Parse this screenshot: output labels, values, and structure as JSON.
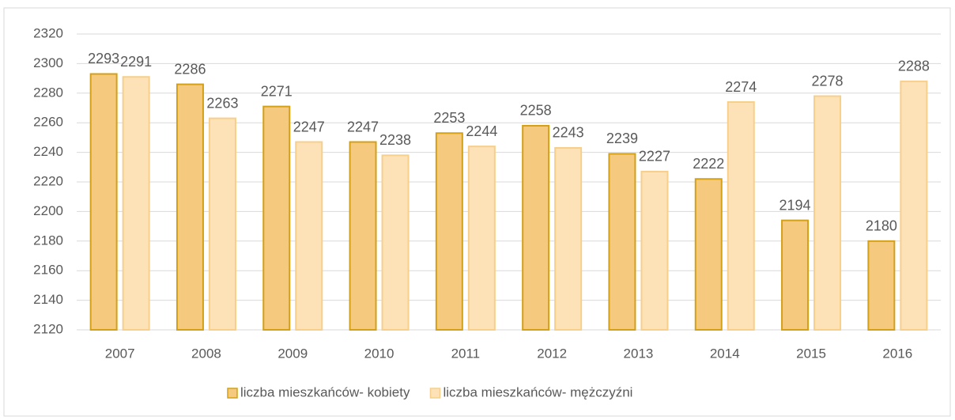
{
  "chart_data": {
    "type": "bar",
    "categories": [
      "2007",
      "2008",
      "2009",
      "2010",
      "2011",
      "2012",
      "2013",
      "2014",
      "2015",
      "2016"
    ],
    "series": [
      {
        "name": "liczba mieszkańców- kobiety",
        "color": "#f5c97e",
        "stroke": "#d4a017",
        "values": [
          2293,
          2286,
          2271,
          2247,
          2253,
          2258,
          2239,
          2222,
          2194,
          2180
        ]
      },
      {
        "name": "liczba mieszkańców- mężczyźni",
        "color": "#fde2b8",
        "stroke": "#f7cf8a",
        "values": [
          2291,
          2263,
          2247,
          2238,
          2244,
          2243,
          2227,
          2274,
          2278,
          2288
        ]
      }
    ],
    "ylim": [
      2120,
      2320
    ],
    "yticks": [
      2120,
      2140,
      2160,
      2180,
      2200,
      2220,
      2240,
      2260,
      2280,
      2300,
      2320
    ],
    "grid": true,
    "legend": "bottom"
  }
}
